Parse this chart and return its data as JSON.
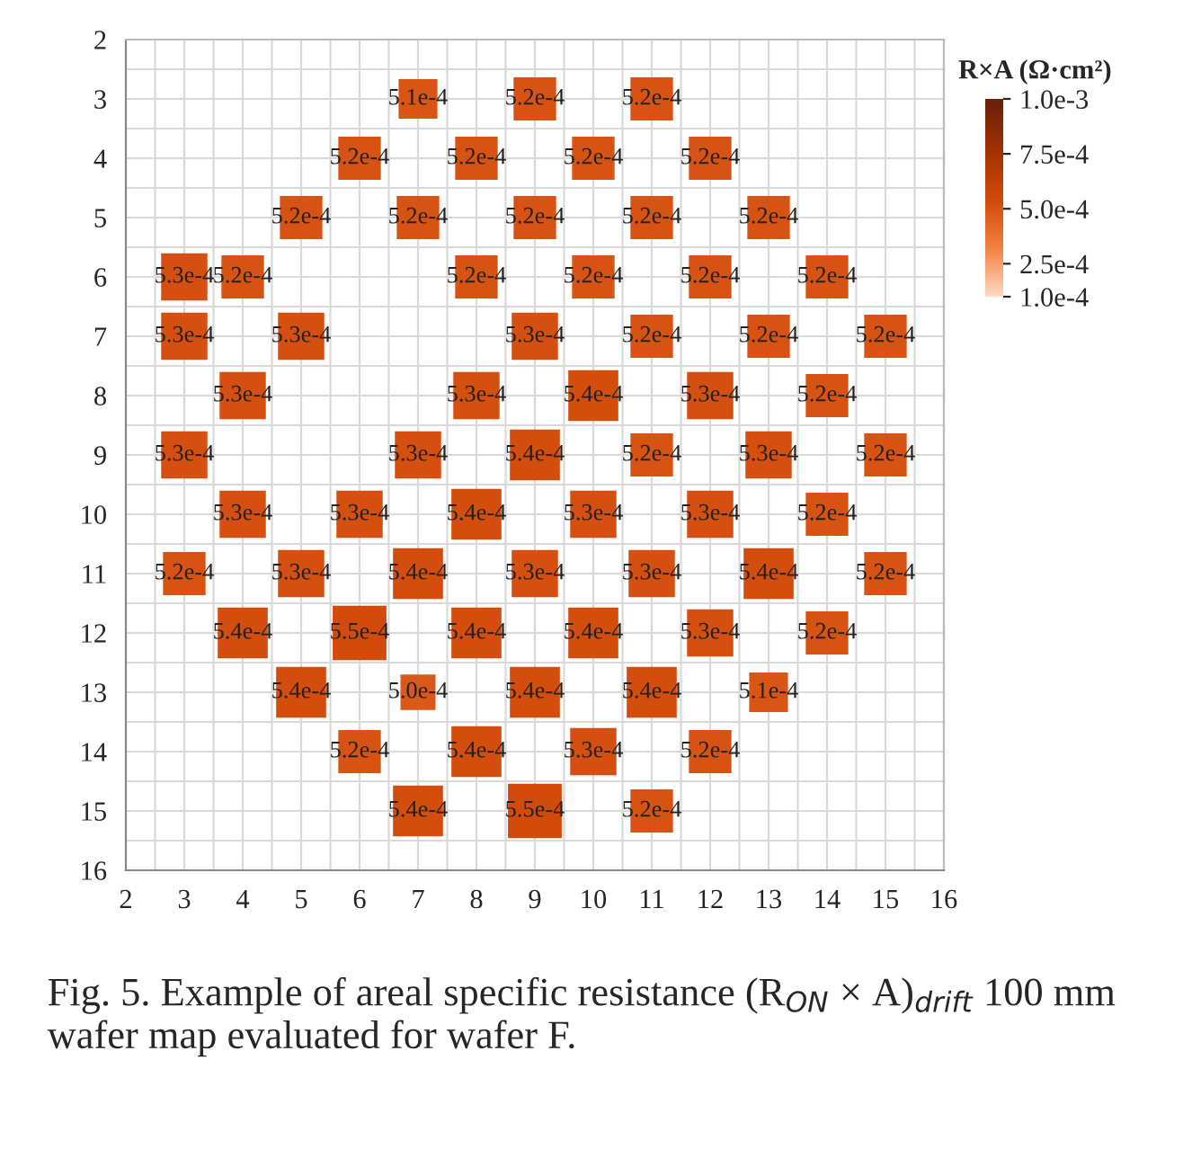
{
  "chart_data": {
    "type": "heatmap",
    "clabel": "R×A (Ω·cm²)",
    "annotations": [
      "Fig. 5. Example of areal specific resistance (R$_{ON}$ × A)$_{drift}$ 100 mm wafer map evaluated for wafer F."
    ],
    "categories": [
      "2",
      "3",
      "4",
      "5",
      "6",
      "7",
      "8",
      "9",
      "10",
      "11",
      "12",
      "13",
      "14",
      "15",
      "16"
    ],
    "y_categories": [
      "2",
      "3",
      "4",
      "5",
      "6",
      "7",
      "8",
      "9",
      "10",
      "11",
      "12",
      "13",
      "14",
      "15",
      "16"
    ],
    "cells": [
      [
        null,
        null,
        null,
        null,
        null,
        null,
        null,
        null,
        null,
        null,
        null,
        null,
        null,
        null,
        null
      ],
      [
        null,
        null,
        null,
        null,
        null,
        0.00051,
        null,
        0.00052,
        null,
        0.00052,
        null,
        null,
        null,
        null,
        null
      ],
      [
        null,
        null,
        null,
        null,
        0.00052,
        null,
        0.00052,
        null,
        0.00052,
        null,
        0.00052,
        null,
        null,
        null,
        null
      ],
      [
        null,
        null,
        null,
        0.00052,
        null,
        0.00052,
        null,
        0.00052,
        null,
        0.00052,
        null,
        0.00052,
        null,
        null,
        null
      ],
      [
        null,
        0.00053,
        0.00052,
        null,
        null,
        null,
        0.00052,
        null,
        0.00052,
        null,
        0.00052,
        null,
        0.00052,
        null,
        null
      ],
      [
        null,
        0.00053,
        null,
        0.00053,
        null,
        null,
        null,
        0.00053,
        null,
        0.00052,
        null,
        0.00052,
        null,
        0.00052,
        null
      ],
      [
        null,
        null,
        0.00053,
        null,
        null,
        null,
        0.00053,
        null,
        0.00054,
        null,
        0.00053,
        null,
        0.00052,
        null,
        null
      ],
      [
        null,
        0.00053,
        null,
        null,
        null,
        0.00053,
        null,
        0.00054,
        null,
        0.00052,
        null,
        0.00053,
        null,
        0.00052,
        null
      ],
      [
        null,
        null,
        0.00053,
        null,
        0.00053,
        null,
        0.00054,
        null,
        0.00053,
        null,
        0.00053,
        null,
        0.00052,
        null,
        null
      ],
      [
        null,
        0.00052,
        null,
        0.00053,
        null,
        0.00054,
        null,
        0.00053,
        null,
        0.00053,
        null,
        0.00054,
        null,
        0.00052,
        null
      ],
      [
        null,
        null,
        0.00054,
        null,
        0.00055,
        null,
        0.00054,
        null,
        0.00054,
        null,
        0.00053,
        null,
        0.00052,
        null,
        null
      ],
      [
        null,
        null,
        null,
        0.00054,
        null,
        0.0005,
        null,
        0.00054,
        null,
        0.00054,
        null,
        0.00051,
        null,
        null,
        null
      ],
      [
        null,
        null,
        null,
        null,
        0.00052,
        null,
        0.00054,
        null,
        0.00053,
        null,
        0.00052,
        null,
        null,
        null,
        null
      ],
      [
        null,
        null,
        null,
        null,
        null,
        0.00054,
        null,
        0.00055,
        null,
        0.00052,
        null,
        null,
        null,
        null,
        null
      ],
      [
        null,
        null,
        null,
        null,
        null,
        null,
        null,
        null,
        null,
        null,
        null,
        null,
        null,
        null,
        null
      ]
    ],
    "cell_labels": [
      [
        null,
        null,
        null,
        null,
        null,
        null,
        null,
        null,
        null,
        null,
        null,
        null,
        null,
        null,
        null
      ],
      [
        null,
        null,
        null,
        null,
        null,
        "5.1e-4",
        null,
        "5.2e-4",
        null,
        "5.2e-4",
        null,
        null,
        null,
        null,
        null
      ],
      [
        null,
        null,
        null,
        null,
        "5.2e-4",
        null,
        "5.2e-4",
        null,
        "5.2e-4",
        null,
        "5.2e-4",
        null,
        null,
        null,
        null
      ],
      [
        null,
        null,
        null,
        "5.2e-4",
        null,
        "5.2e-4",
        null,
        "5.2e-4",
        null,
        "5.2e-4",
        null,
        "5.2e-4",
        null,
        null,
        null
      ],
      [
        null,
        "5.3e-4",
        "5.2e-4",
        null,
        null,
        null,
        "5.2e-4",
        null,
        "5.2e-4",
        null,
        "5.2e-4",
        null,
        "5.2e-4",
        null,
        null
      ],
      [
        null,
        "5.3e-4",
        null,
        "5.3e-4",
        null,
        null,
        null,
        "5.3e-4",
        null,
        "5.2e-4",
        null,
        "5.2e-4",
        null,
        "5.2e-4",
        null
      ],
      [
        null,
        null,
        "5.3e-4",
        null,
        null,
        null,
        "5.3e-4",
        null,
        "5.4e-4",
        null,
        "5.3e-4",
        null,
        "5.2e-4",
        null,
        null
      ],
      [
        null,
        "5.3e-4",
        null,
        null,
        null,
        "5.3e-4",
        null,
        "5.4e-4",
        null,
        "5.2e-4",
        null,
        "5.3e-4",
        null,
        "5.2e-4",
        null
      ],
      [
        null,
        null,
        "5.3e-4",
        null,
        "5.3e-4",
        null,
        "5.4e-4",
        null,
        "5.3e-4",
        null,
        "5.3e-4",
        null,
        "5.2e-4",
        null,
        null
      ],
      [
        null,
        "5.2e-4",
        null,
        "5.3e-4",
        null,
        "5.4e-4",
        null,
        "5.3e-4",
        null,
        "5.3e-4",
        null,
        "5.4e-4",
        null,
        "5.2e-4",
        null
      ],
      [
        null,
        null,
        "5.4e-4",
        null,
        "5.5e-4",
        null,
        "5.4e-4",
        null,
        "5.4e-4",
        null,
        "5.3e-4",
        null,
        "5.2e-4",
        null,
        null
      ],
      [
        null,
        null,
        null,
        "5.4e-4",
        null,
        "5.0e-4",
        null,
        "5.4e-4",
        null,
        "5.4e-4",
        null,
        "5.1e-4",
        null,
        null,
        null
      ],
      [
        null,
        null,
        null,
        null,
        "5.2e-4",
        null,
        "5.4e-4",
        null,
        "5.3e-4",
        null,
        "5.2e-4",
        null,
        null,
        null,
        null
      ],
      [
        null,
        null,
        null,
        null,
        null,
        "5.4e-4",
        null,
        "5.5e-4",
        null,
        "5.2e-4",
        null,
        null,
        null,
        null,
        null
      ],
      [
        null,
        null,
        null,
        null,
        null,
        null,
        null,
        null,
        null,
        null,
        null,
        null,
        null,
        null,
        null
      ]
    ],
    "clim": [
      0.0001,
      0.001
    ],
    "cticks": [
      {
        "value": 0.0001,
        "label": "1.0e-4"
      },
      {
        "value": 0.00025,
        "label": "2.5e-4"
      },
      {
        "value": 0.0005,
        "label": "5.0e-4"
      },
      {
        "value": 0.00075,
        "label": "7.5e-4"
      },
      {
        "value": 0.001,
        "label": "1.0e-3"
      }
    ],
    "grid": true
  }
}
